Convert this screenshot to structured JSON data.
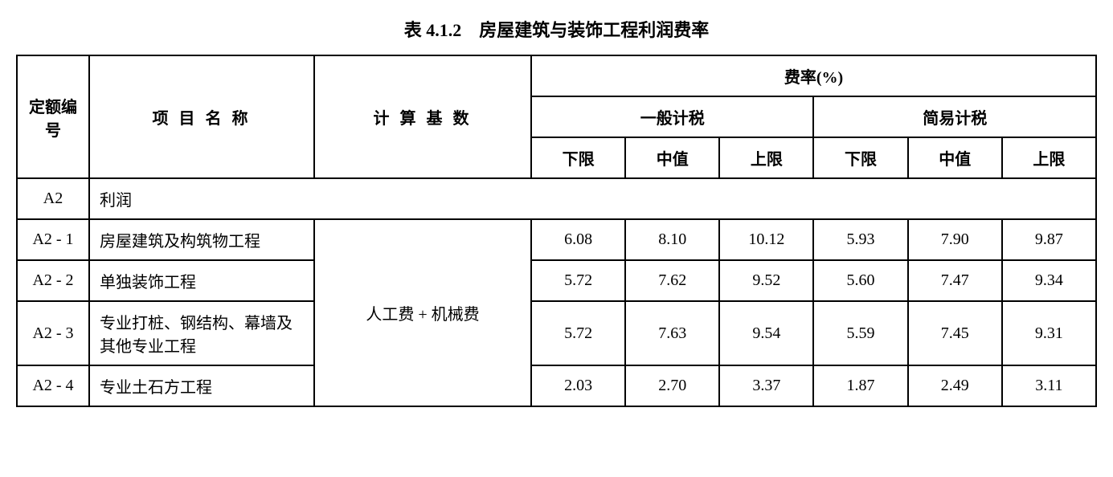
{
  "title": "表 4.1.2　房屋建筑与装饰工程利润费率",
  "headers": {
    "code": "定额编号",
    "name": "项 目 名 称",
    "base": "计 算 基 数",
    "rate": "费率(%)",
    "general": "一般计税",
    "simple": "简易计税",
    "lower": "下限",
    "mid": "中值",
    "upper": "上限"
  },
  "section": {
    "code": "A2",
    "label": "利润"
  },
  "calc_base": "人工费 + 机械费",
  "rows": [
    {
      "code": "A2 - 1",
      "name": "房屋建筑及构筑物工程",
      "g_lower": "6.08",
      "g_mid": "8.10",
      "g_upper": "10.12",
      "s_lower": "5.93",
      "s_mid": "7.90",
      "s_upper": "9.87"
    },
    {
      "code": "A2 - 2",
      "name": "单独装饰工程",
      "g_lower": "5.72",
      "g_mid": "7.62",
      "g_upper": "9.52",
      "s_lower": "5.60",
      "s_mid": "7.47",
      "s_upper": "9.34"
    },
    {
      "code": "A2 - 3",
      "name": "专业打桩、钢结构、幕墙及其他专业工程",
      "g_lower": "5.72",
      "g_mid": "7.63",
      "g_upper": "9.54",
      "s_lower": "5.59",
      "s_mid": "7.45",
      "s_upper": "9.31"
    },
    {
      "code": "A2 - 4",
      "name": "专业土石方工程",
      "g_lower": "2.03",
      "g_mid": "2.70",
      "g_upper": "3.37",
      "s_lower": "1.87",
      "s_mid": "2.49",
      "s_upper": "3.11"
    }
  ],
  "styling": {
    "border_color": "#000000",
    "border_width": 2,
    "background_color": "#ffffff",
    "font_family": "SimSun",
    "title_fontsize": 22,
    "cell_fontsize": 20,
    "column_widths": {
      "code": 90,
      "name": 280,
      "base": 270
    }
  }
}
